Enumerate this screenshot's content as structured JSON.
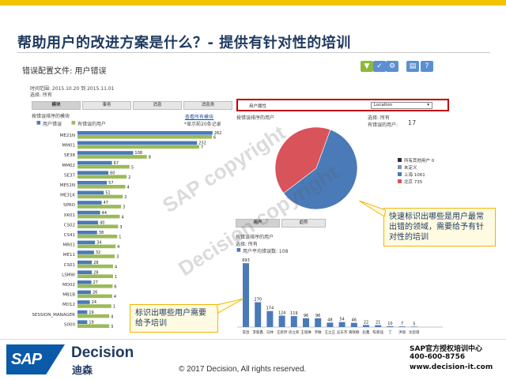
{
  "slide": {
    "title": "帮助用户的改进方案是什么？- 提供有针对性的培训",
    "copyright": "© 2017 Decision, All rights reserved.",
    "brand_logo": "SAP",
    "brand_name": "Decision",
    "brand_cn": "迪森",
    "contact": [
      "SAP官方授权培训中心",
      "400-600-8756",
      "www.decision-it.com"
    ],
    "watermarks": [
      "SAP copyright",
      "Decision copyright"
    ]
  },
  "report": {
    "title": "错误配置文件: 用户错误",
    "time_range": "时间范围: 2015.10.20 到 2015.11.01",
    "selection": "选择: 所有",
    "tabs": [
      "模块",
      "事务",
      "消息",
      "消息类"
    ],
    "left_chart_title": "按错误排序的模块",
    "left_legend_1": "用户错误",
    "left_legend_2": "有错误的用户",
    "left_link": "查看所有模块",
    "left_note": "*显示前20条记录",
    "right_prompt": "用户属性",
    "right_select": "Location",
    "right_header": "按错误排序的用户",
    "right_filter": "选择: 所有",
    "right_count_label": "有错误的用户:",
    "right_count": "17",
    "bottom_tabs": [
      "用户",
      "趋势"
    ],
    "bottom_title": "按错误排序的用户",
    "bottom_filter": "选择: 所有",
    "bottom_legend": "用户平均错误数: 108"
  },
  "callouts": {
    "right": "快速标识出哪些是用户最常出错的领域，需要给予有针对性的培训",
    "left": "标识出哪些用户需要给予培训"
  },
  "chart_data": [
    {
      "type": "bar",
      "orientation": "horizontal",
      "categories": [
        "ME21N",
        "MM01",
        "SE38",
        "MM02",
        "SE37",
        "ME51N",
        "ME31K",
        "SPRO",
        "XK01",
        "CS02",
        "CS41",
        "MR01",
        "ME11",
        "CS01",
        "LSMW",
        "MD02",
        "MB1B",
        "MD12",
        "SESSION_MANAGER",
        "S000"
      ],
      "series": [
        {
          "name": "用户错误",
          "values": [
            262,
            232,
            108,
            67,
            60,
            57,
            51,
            47,
            44,
            40,
            38,
            34,
            32,
            28,
            28,
            27,
            26,
            24,
            19,
            19
          ]
        },
        {
          "name": "有错误的用户",
          "values": [
            6,
            7,
            8,
            5,
            2,
            4,
            2,
            3,
            4,
            3,
            1,
            4,
            3,
            4,
            1,
            6,
            4,
            1,
            4,
            3
          ]
        }
      ],
      "xlim": [
        0,
        270
      ]
    },
    {
      "type": "pie",
      "categories": [
        "所有其他用户",
        "未定义",
        "上海",
        "北京"
      ],
      "values": [
        0,
        0,
        1061,
        735
      ],
      "labels": [
        "所有其他用户 0",
        "未定义",
        "上海 1061",
        "北京 735"
      ],
      "colors": [
        "#1f2d4e",
        "#7f93b3",
        "#4a7ab8",
        "#d9535a"
      ]
    },
    {
      "type": "bar",
      "orientation": "vertical",
      "categories": [
        "常昌",
        "李家鑫",
        "马林",
        "王新然",
        "房立新",
        "王瑞琳",
        "罗敏",
        "王立正",
        "吴东杰",
        "黄晓静",
        "赵鑫",
        "陈家强",
        "丁",
        "洪丽",
        "沈思雨"
      ],
      "values": [
        693,
        270,
        174,
        124,
        119,
        96,
        96,
        48,
        54,
        46,
        22,
        21,
        10,
        7,
        5
      ],
      "ylim": [
        0,
        720
      ]
    }
  ],
  "colors": {
    "accent": "#f2c300",
    "title": "#1f3a60",
    "series_blue": "#4a7ab8",
    "series_green": "#9bbb59",
    "highlight": "#c00000"
  },
  "icons": [
    "filter-icon",
    "check-icon",
    "settings-icon",
    "print-icon",
    "help-icon"
  ]
}
